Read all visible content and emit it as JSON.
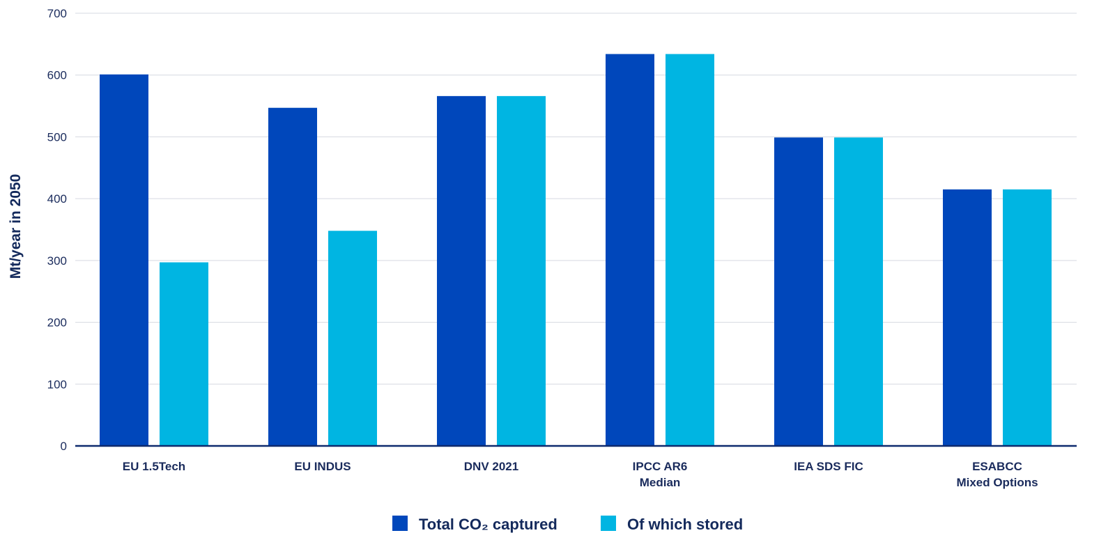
{
  "chart_data": {
    "type": "bar",
    "ylabel": "Mt/year in 2050",
    "ylim": [
      0,
      700
    ],
    "yticks": [
      0,
      100,
      200,
      300,
      400,
      500,
      600,
      700
    ],
    "grid": true,
    "legend_position": "bottom-center",
    "categories": [
      [
        "EU 1.5Tech"
      ],
      [
        "EU INDUS"
      ],
      [
        "DNV 2021"
      ],
      [
        "IPCC AR6",
        "Median"
      ],
      [
        "IEA SDS FIC"
      ],
      [
        "ESABCC",
        "Mixed Options"
      ]
    ],
    "series": [
      {
        "name": "Total CO₂ captured",
        "color": "#0047bb",
        "values": [
          601,
          547,
          566,
          634,
          499,
          415
        ]
      },
      {
        "name": "Of which stored",
        "color": "#00b5e2",
        "values": [
          297,
          348,
          566,
          634,
          499,
          415
        ]
      }
    ]
  }
}
